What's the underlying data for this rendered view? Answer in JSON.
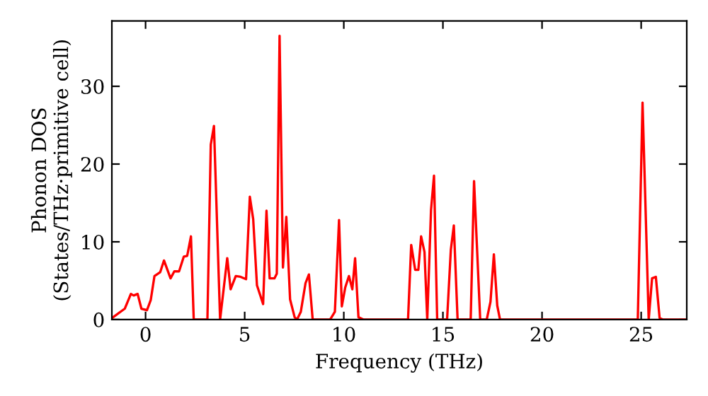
{
  "chart_data": {
    "type": "line",
    "xlabel": "Frequency (THz)",
    "ylabel": "Phonon DOS\n(States/THz·primitive cell)",
    "series": [
      {
        "color": "#ff0000",
        "x": [
          -1.64,
          -1.05,
          -0.74,
          -0.6,
          -0.4,
          -0.21,
          0.07,
          0.26,
          0.45,
          0.74,
          0.93,
          1.26,
          1.45,
          1.69,
          1.93,
          2.1,
          2.29,
          2.43,
          3.12,
          3.29,
          3.45,
          3.76,
          4.12,
          4.29,
          4.55,
          4.79,
          5.07,
          5.26,
          5.43,
          5.62,
          5.93,
          6.1,
          6.26,
          6.5,
          6.62,
          6.76,
          6.93,
          7.1,
          7.29,
          7.52,
          7.64,
          7.83,
          8.07,
          8.24,
          8.43,
          9.31,
          9.55,
          9.76,
          9.9,
          10.07,
          10.26,
          10.43,
          10.57,
          10.74,
          11.0,
          13.24,
          13.4,
          13.6,
          13.76,
          13.9,
          14.07,
          14.21,
          14.4,
          14.55,
          14.71,
          15.21,
          15.4,
          15.55,
          15.74,
          16.4,
          16.57,
          16.88,
          17.21,
          17.4,
          17.57,
          17.74,
          17.88,
          24.83,
          25.07,
          25.38,
          25.55,
          25.74,
          25.93,
          26.1,
          27.3
        ],
        "values": [
          0.3,
          1.4,
          3.3,
          3.1,
          3.3,
          1.4,
          1.2,
          2.5,
          5.6,
          6.1,
          7.6,
          5.3,
          6.2,
          6.2,
          8.1,
          8.2,
          10.7,
          0,
          0,
          22.5,
          24.9,
          0,
          7.9,
          3.9,
          5.6,
          5.5,
          5.2,
          15.8,
          12.9,
          4.4,
          2.0,
          14.0,
          5.3,
          5.3,
          5.9,
          36.5,
          6.7,
          13.2,
          2.6,
          0.3,
          0,
          1.0,
          4.7,
          5.8,
          0,
          0,
          1.0,
          12.8,
          1.7,
          4.1,
          5.6,
          3.9,
          7.9,
          0.3,
          0,
          0,
          9.6,
          6.4,
          6.4,
          10.7,
          8.7,
          0,
          14.1,
          18.5,
          0,
          0,
          9.0,
          12.1,
          0,
          0,
          17.8,
          0,
          0,
          2.3,
          8.4,
          1.8,
          0,
          0,
          27.9,
          0,
          5.3,
          5.5,
          0.2,
          0,
          0
        ]
      }
    ],
    "xlim": [
      -1.7,
      27.3
    ],
    "ylim": [
      0,
      38.4
    ],
    "xticks": [
      0,
      5,
      10,
      15,
      20,
      25
    ],
    "yticks": [
      0,
      10,
      20,
      30
    ],
    "grid": false,
    "legend": false,
    "marker": "none",
    "line_style": "solid"
  }
}
